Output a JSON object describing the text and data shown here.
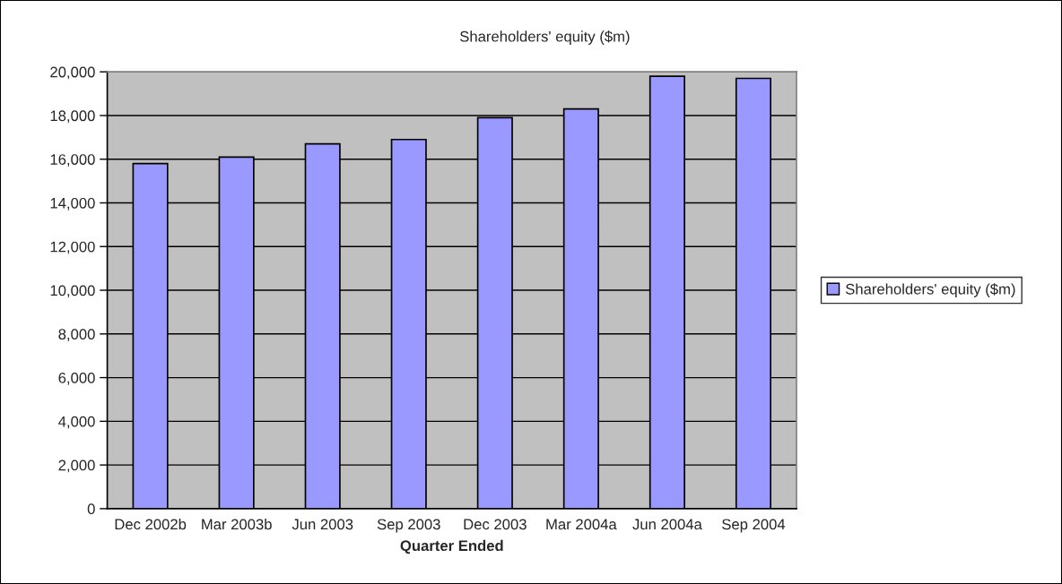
{
  "chart_data": {
    "type": "bar",
    "title": "Shareholders' equity ($m)",
    "xlabel": "Quarter Ended",
    "categories": [
      "Dec 2002b",
      "Mar 2003b",
      "Jun 2003",
      "Sep 2003",
      "Dec 2003",
      "Mar 2004a",
      "Jun 2004a",
      "Sep 2004"
    ],
    "series": [
      {
        "name": "Shareholders' equity ($m)",
        "color": "#9999ff",
        "values": [
          15800,
          16100,
          16700,
          16900,
          17900,
          18300,
          19800,
          19700
        ]
      }
    ],
    "ylim": [
      0,
      20000
    ],
    "yticks": [
      0,
      {
        "value": 2000,
        "label": "2,000"
      },
      {
        "value": 4000,
        "label": "4,000"
      },
      {
        "value": 6000,
        "label": "6,000"
      },
      {
        "value": 8000,
        "label": "8,000"
      },
      {
        "value": 10000,
        "label": "10,000"
      },
      {
        "value": 12000,
        "label": "12,000"
      },
      {
        "value": 14000,
        "label": "14,000"
      },
      {
        "value": 16000,
        "label": "16,000"
      },
      {
        "value": 18000,
        "label": "18,000"
      },
      {
        "value": 20000,
        "label": "20,000"
      }
    ],
    "grid": "y",
    "legend": "right"
  }
}
